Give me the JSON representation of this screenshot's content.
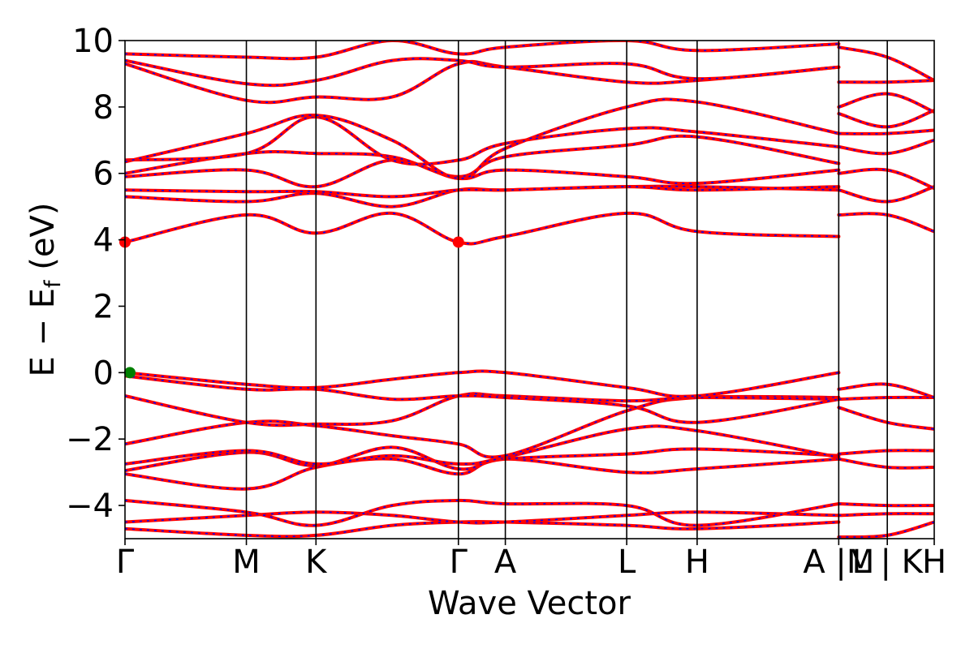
{
  "chart_data": {
    "type": "line",
    "title": "",
    "xlabel": "Wave Vector",
    "ylabel": "E − E",
    "ylabel_sub": "f",
    "ylabel_unit": " (eV)",
    "ylim": [
      -5,
      10
    ],
    "y_ticks": [
      -4,
      -2,
      0,
      2,
      4,
      6,
      8,
      10
    ],
    "y_tick_labels": [
      "−4",
      "−2",
      "0",
      "2",
      "4",
      "6",
      "8",
      "10"
    ],
    "x_path_nodes": [
      0,
      0.15,
      0.236,
      0.412,
      0.47,
      0.62,
      0.707,
      0.882,
      0.942,
      1.0
    ],
    "x_tick_positions": [
      0,
      0.15,
      0.236,
      0.412,
      0.47,
      0.62,
      0.707,
      0.882,
      0.942,
      1.0
    ],
    "x_tick_labels": [
      "Γ",
      "M",
      "K",
      "Γ",
      "A",
      "L",
      "H",
      "A |M",
      "L | K",
      "H"
    ],
    "xlim": [
      0,
      1
    ],
    "line_colors": {
      "band": "#ff0000",
      "band_overlay": "#0000ff",
      "axis": "#000000"
    },
    "extrema_markers": [
      {
        "label": "CBM",
        "x": 0,
        "y": 3.93,
        "color": "#ff0000"
      },
      {
        "label": "CBM",
        "x": 0.412,
        "y": 3.93,
        "color": "#ff0000"
      },
      {
        "label": "VBM",
        "x": 0.006,
        "y": 0.0,
        "color": "#008000"
      }
    ],
    "series": [
      {
        "x": [
          0,
          0.15,
          0.236,
          0.33,
          0.412,
          0.47,
          0.62,
          0.707,
          0.882
        ],
        "y": [
          -4.7,
          -4.9,
          -4.9,
          -4.6,
          -4.5,
          -4.5,
          -4.6,
          -4.7,
          -4.5
        ]
      },
      {
        "x": [
          0,
          0.15,
          0.236,
          0.33,
          0.412,
          0.47,
          0.62,
          0.707,
          0.882
        ],
        "y": [
          -4.5,
          -4.3,
          -4.2,
          -4.3,
          -4.5,
          -4.5,
          -4.3,
          -4.2,
          -4.3
        ]
      },
      {
        "x": [
          0,
          0.15,
          0.236,
          0.33,
          0.412,
          0.47,
          0.62,
          0.707,
          0.882
        ],
        "y": [
          -3.85,
          -4.2,
          -4.6,
          -4.0,
          -3.85,
          -3.95,
          -4.0,
          -4.6,
          -3.95
        ]
      },
      {
        "x": [
          0,
          0.15,
          0.236,
          0.33,
          0.412,
          0.47,
          0.62,
          0.707,
          0.882
        ],
        "y": [
          -3.05,
          -3.5,
          -2.85,
          -2.6,
          -3.05,
          -2.6,
          -3.0,
          -2.9,
          -2.6
        ]
      },
      {
        "x": [
          0,
          0.15,
          0.236,
          0.33,
          0.412,
          0.47,
          0.62,
          0.707,
          0.882
        ],
        "y": [
          -2.95,
          -2.4,
          -2.8,
          -2.25,
          -2.9,
          -2.6,
          -2.45,
          -2.3,
          -2.5
        ]
      },
      {
        "x": [
          0,
          0.15,
          0.236,
          0.33,
          0.412,
          0.47,
          0.62,
          0.707,
          0.882
        ],
        "y": [
          -2.75,
          -2.35,
          -2.75,
          -2.5,
          -2.75,
          -2.55,
          -1.7,
          -1.75,
          -2.55
        ]
      },
      {
        "x": [
          0,
          0.15,
          0.236,
          0.33,
          0.412,
          0.47,
          0.62,
          0.707,
          0.882
        ],
        "y": [
          -2.15,
          -1.5,
          -1.6,
          -1.9,
          -2.15,
          -2.5,
          -1.15,
          -0.75,
          -0.75
        ]
      },
      {
        "x": [
          0,
          0.15,
          0.236,
          0.33,
          0.412,
          0.47,
          0.62,
          0.707,
          0.882
        ],
        "y": [
          -0.7,
          -1.5,
          -1.55,
          -1.45,
          -0.7,
          -0.7,
          -0.85,
          -0.75,
          -0.8
        ]
      },
      {
        "x": [
          0,
          0.15,
          0.236,
          0.33,
          0.412,
          0.47,
          0.62,
          0.707,
          0.882
        ],
        "y": [
          -0.1,
          -0.5,
          -0.5,
          -0.8,
          -0.7,
          -0.75,
          -1.0,
          -1.5,
          -0.8
        ]
      },
      {
        "x": [
          0,
          0.15,
          0.236,
          0.33,
          0.412,
          0.47,
          0.62,
          0.707,
          0.882
        ],
        "y": [
          0.0,
          -0.35,
          -0.45,
          -0.2,
          0.0,
          0.0,
          -0.45,
          -0.7,
          0.0
        ]
      },
      {
        "x": [
          0,
          0.15,
          0.236,
          0.33,
          0.412,
          0.47,
          0.62,
          0.707,
          0.882
        ],
        "y": [
          3.93,
          4.75,
          4.2,
          4.8,
          3.93,
          4.1,
          4.8,
          4.25,
          4.1
        ]
      },
      {
        "x": [
          0,
          0.15,
          0.236,
          0.33,
          0.412,
          0.47,
          0.62,
          0.707,
          0.882
        ],
        "y": [
          5.3,
          5.15,
          5.4,
          5.0,
          5.5,
          5.5,
          5.6,
          5.6,
          5.5
        ]
      },
      {
        "x": [
          0,
          0.15,
          0.236,
          0.33,
          0.412,
          0.47,
          0.62,
          0.707,
          0.882
        ],
        "y": [
          5.5,
          5.45,
          5.45,
          5.3,
          5.5,
          5.5,
          5.6,
          5.5,
          5.6
        ]
      },
      {
        "x": [
          0,
          0.15,
          0.236,
          0.33,
          0.412,
          0.47,
          0.62,
          0.707,
          0.882
        ],
        "y": [
          5.9,
          6.1,
          5.6,
          6.4,
          5.85,
          6.1,
          5.9,
          5.7,
          6.1
        ]
      },
      {
        "x": [
          0,
          0.15,
          0.236,
          0.33,
          0.412,
          0.47,
          0.62,
          0.707,
          0.882
        ],
        "y": [
          6.0,
          6.6,
          6.6,
          6.5,
          5.9,
          6.5,
          6.85,
          7.1,
          6.3
        ]
      },
      {
        "x": [
          0,
          0.15,
          0.236,
          0.33,
          0.412,
          0.47,
          0.62,
          0.707,
          0.882
        ],
        "y": [
          6.4,
          6.6,
          7.7,
          6.4,
          6.4,
          6.9,
          7.35,
          7.25,
          6.8
        ]
      },
      {
        "x": [
          0,
          0.15,
          0.236,
          0.33,
          0.412,
          0.47,
          0.62,
          0.707,
          0.882
        ],
        "y": [
          6.35,
          7.2,
          7.75,
          7.0,
          5.85,
          6.75,
          8.0,
          8.15,
          7.2
        ]
      },
      {
        "x": [
          0,
          0.15,
          0.236,
          0.33,
          0.412,
          0.47,
          0.62,
          0.707,
          0.882
        ],
        "y": [
          9.3,
          8.2,
          8.3,
          8.3,
          9.3,
          9.2,
          8.75,
          8.8,
          9.2
        ]
      },
      {
        "x": [
          0,
          0.15,
          0.236,
          0.33,
          0.412,
          0.47,
          0.62,
          0.707,
          0.882
        ],
        "y": [
          9.4,
          8.7,
          8.8,
          9.4,
          9.4,
          9.2,
          9.3,
          8.85,
          9.2
        ]
      },
      {
        "x": [
          0,
          0.15,
          0.236,
          0.33,
          0.412,
          0.47,
          0.62,
          0.707,
          0.882
        ],
        "y": [
          9.6,
          9.5,
          9.5,
          10.0,
          9.6,
          9.8,
          10.0,
          9.7,
          9.9
        ]
      },
      {
        "x": [
          0.882,
          0.942,
          1.0
        ],
        "y": [
          -4.95,
          -4.9,
          -4.5
        ]
      },
      {
        "x": [
          0.882,
          0.942,
          1.0
        ],
        "y": [
          -4.3,
          -4.25,
          -4.25
        ]
      },
      {
        "x": [
          0.882,
          0.942,
          1.0
        ],
        "y": [
          -3.95,
          -4.0,
          -4.0
        ]
      },
      {
        "x": [
          0.882,
          0.942,
          1.0
        ],
        "y": [
          -2.6,
          -2.85,
          -2.85
        ]
      },
      {
        "x": [
          0.882,
          0.942,
          1.0
        ],
        "y": [
          -2.45,
          -2.35,
          -2.35
        ]
      },
      {
        "x": [
          0.882,
          0.942,
          1.0
        ],
        "y": [
          -1.05,
          -1.5,
          -1.7
        ]
      },
      {
        "x": [
          0.882,
          0.942,
          1.0
        ],
        "y": [
          -0.8,
          -0.75,
          -0.75
        ]
      },
      {
        "x": [
          0.882,
          0.942,
          1.0
        ],
        "y": [
          -0.5,
          -0.35,
          -0.75
        ]
      },
      {
        "x": [
          0.882,
          0.942,
          1.0
        ],
        "y": [
          4.75,
          4.75,
          4.25
        ]
      },
      {
        "x": [
          0.882,
          0.942,
          1.0
        ],
        "y": [
          5.5,
          5.15,
          5.6
        ]
      },
      {
        "x": [
          0.882,
          0.942,
          1.0
        ],
        "y": [
          6.0,
          6.1,
          5.55
        ]
      },
      {
        "x": [
          0.882,
          0.942,
          1.0
        ],
        "y": [
          6.8,
          6.6,
          7.0
        ]
      },
      {
        "x": [
          0.882,
          0.942,
          1.0
        ],
        "y": [
          7.2,
          7.2,
          7.3
        ]
      },
      {
        "x": [
          0.882,
          0.942,
          1.0
        ],
        "y": [
          7.8,
          7.4,
          7.9
        ]
      },
      {
        "x": [
          0.882,
          0.942,
          1.0
        ],
        "y": [
          8.0,
          8.4,
          7.85
        ]
      },
      {
        "x": [
          0.882,
          0.942,
          1.0
        ],
        "y": [
          8.75,
          8.75,
          8.8
        ]
      },
      {
        "x": [
          0.882,
          0.942,
          1.0
        ],
        "y": [
          9.8,
          9.5,
          8.8
        ]
      }
    ]
  }
}
